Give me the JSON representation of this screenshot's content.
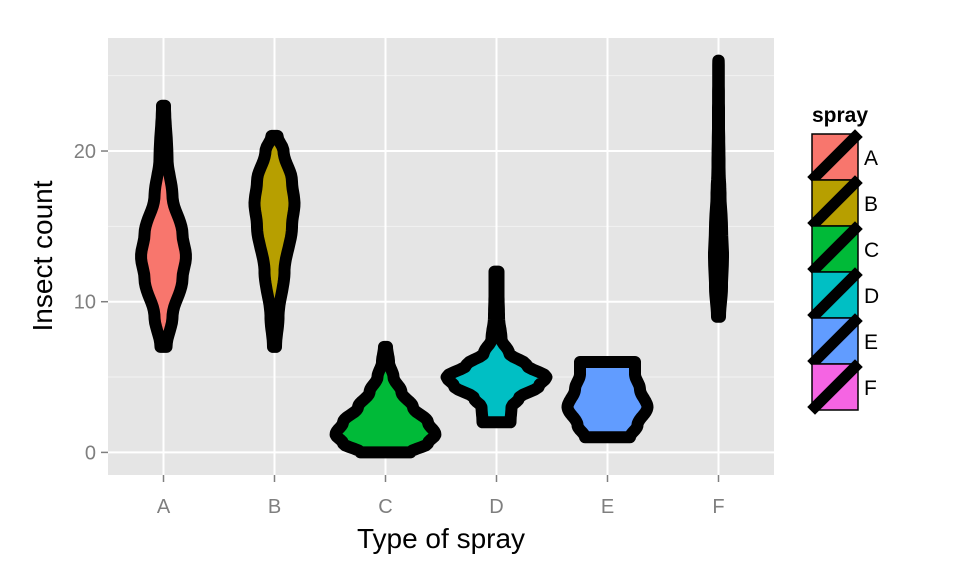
{
  "chart_data": {
    "type": "violin",
    "xlabel": "Type of spray",
    "ylabel": "Insect count",
    "categories": [
      "A",
      "B",
      "C",
      "D",
      "E",
      "F"
    ],
    "ylim": [
      -1.5,
      27.5
    ],
    "yticks": [
      0,
      10,
      20
    ],
    "grid": true,
    "legend": {
      "title": "spray",
      "position": "right",
      "items": [
        "A",
        "B",
        "C",
        "D",
        "E",
        "F"
      ]
    },
    "outline_color": "#000000",
    "fill_colors": {
      "A": "#F8766D",
      "B": "#B79F00",
      "C": "#00BA38",
      "D": "#00BFC4",
      "E": "#619CFF",
      "F": "#F564E3"
    },
    "series": [
      {
        "name": "A",
        "min": 7,
        "max": 23,
        "profile": [
          [
            7,
            0.06
          ],
          [
            9,
            0.18
          ],
          [
            11.5,
            0.38
          ],
          [
            13,
            0.45
          ],
          [
            14.5,
            0.38
          ],
          [
            17,
            0.18
          ],
          [
            19.5,
            0.08
          ],
          [
            23,
            0.03
          ]
        ]
      },
      {
        "name": "B",
        "min": 7,
        "max": 21,
        "profile": [
          [
            7,
            0.03
          ],
          [
            9,
            0.08
          ],
          [
            12,
            0.2
          ],
          [
            15,
            0.35
          ],
          [
            16.5,
            0.4
          ],
          [
            18,
            0.35
          ],
          [
            20,
            0.18
          ],
          [
            21,
            0.06
          ]
        ]
      },
      {
        "name": "C",
        "min": 0,
        "max": 7,
        "profile": [
          [
            0,
            0.5
          ],
          [
            0.6,
            0.85
          ],
          [
            1.2,
            1.0
          ],
          [
            2,
            0.85
          ],
          [
            3,
            0.55
          ],
          [
            4,
            0.32
          ],
          [
            5,
            0.16
          ],
          [
            6,
            0.07
          ],
          [
            7,
            0.03
          ]
        ]
      },
      {
        "name": "D",
        "min": 2,
        "max": 12,
        "profile": [
          [
            2,
            0.28
          ],
          [
            3,
            0.3
          ],
          [
            3.6,
            0.45
          ],
          [
            4.4,
            0.85
          ],
          [
            5,
            1.0
          ],
          [
            5.8,
            0.6
          ],
          [
            6.6,
            0.25
          ],
          [
            7.5,
            0.1
          ],
          [
            9,
            0.05
          ],
          [
            10.5,
            0.04
          ],
          [
            12,
            0.04
          ]
        ]
      },
      {
        "name": "E",
        "min": 1,
        "max": 6,
        "profile": [
          [
            1,
            0.45
          ],
          [
            1.8,
            0.6
          ],
          [
            3,
            0.8
          ],
          [
            4.2,
            0.65
          ],
          [
            5.2,
            0.55
          ],
          [
            6,
            0.55
          ]
        ]
      },
      {
        "name": "F",
        "min": 9,
        "max": 26,
        "profile": [
          [
            9,
            0.03
          ],
          [
            11,
            0.07
          ],
          [
            13,
            0.09
          ],
          [
            15,
            0.07
          ],
          [
            17,
            0.04
          ],
          [
            19,
            0.02
          ],
          [
            22,
            0.01
          ],
          [
            26,
            0.005
          ]
        ]
      }
    ]
  }
}
